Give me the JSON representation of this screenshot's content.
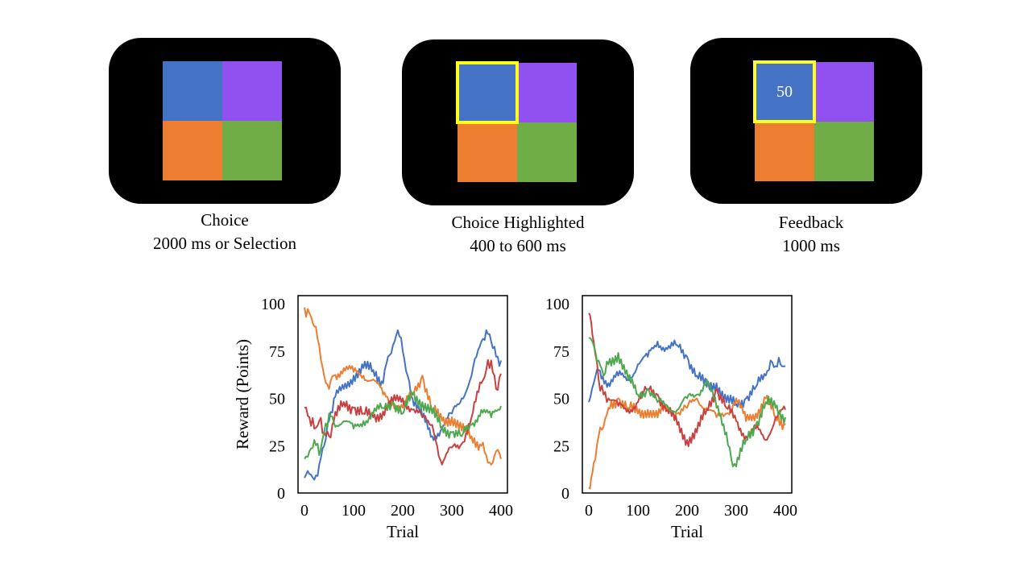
{
  "panels": [
    {
      "caption_line1": "Choice",
      "caption_line2": "2000 ms or Selection",
      "highlight": null,
      "feedback_value": null
    },
    {
      "caption_line1": "Choice Highlighted",
      "caption_line2": "400 to 600 ms",
      "highlight": "top-left",
      "feedback_value": null
    },
    {
      "caption_line1": "Feedback",
      "caption_line2": "1000 ms",
      "highlight": "top-left",
      "feedback_value": "50"
    }
  ],
  "option_colors": {
    "top_left": "#4472c4",
    "top_right": "#9150f0",
    "bottom_left": "#ed7d31",
    "bottom_right": "#70ad47"
  },
  "highlight_color": "#ffff1a",
  "chart_data": [
    {
      "type": "line",
      "xlabel": "Trial",
      "ylabel": "Reward (Points)",
      "xlim": [
        0,
        400
      ],
      "ylim": [
        0,
        100
      ],
      "xticks": [
        "0",
        "100",
        "200",
        "300",
        "400"
      ],
      "yticks": [
        "0",
        "25",
        "50",
        "75",
        "100"
      ],
      "series": [
        {
          "color": "#4472c4",
          "x": [
            0,
            10,
            20,
            30,
            40,
            50,
            60,
            80,
            100,
            120,
            140,
            160,
            170,
            180,
            190,
            200,
            210,
            220,
            240,
            260,
            280,
            300,
            320,
            340,
            350,
            360,
            370,
            380,
            390,
            400
          ],
          "values": [
            8,
            10,
            7,
            15,
            25,
            38,
            50,
            55,
            62,
            66,
            65,
            58,
            72,
            78,
            86,
            75,
            62,
            50,
            40,
            30,
            34,
            42,
            50,
            62,
            72,
            80,
            86,
            80,
            72,
            70
          ]
        },
        {
          "color": "#ed7d31",
          "x": [
            0,
            10,
            20,
            30,
            40,
            50,
            60,
            80,
            100,
            120,
            140,
            160,
            180,
            200,
            220,
            240,
            260,
            280,
            300,
            320,
            340,
            360,
            370,
            380,
            390,
            400
          ],
          "values": [
            98,
            95,
            88,
            78,
            62,
            55,
            62,
            66,
            64,
            62,
            60,
            52,
            48,
            45,
            52,
            62,
            44,
            38,
            40,
            33,
            30,
            25,
            20,
            15,
            22,
            18
          ]
        },
        {
          "color": "#c94040",
          "x": [
            0,
            10,
            20,
            30,
            40,
            50,
            60,
            80,
            100,
            120,
            140,
            160,
            180,
            200,
            220,
            240,
            260,
            270,
            280,
            300,
            320,
            340,
            360,
            370,
            380,
            390,
            400
          ],
          "values": [
            45,
            40,
            34,
            38,
            32,
            30,
            38,
            48,
            45,
            42,
            40,
            43,
            48,
            50,
            44,
            40,
            36,
            25,
            15,
            24,
            26,
            40,
            58,
            65,
            70,
            55,
            63
          ]
        },
        {
          "color": "#4ea84e",
          "x": [
            0,
            10,
            20,
            30,
            40,
            50,
            60,
            80,
            100,
            120,
            140,
            160,
            180,
            200,
            220,
            240,
            260,
            280,
            300,
            320,
            340,
            360,
            380,
            400
          ],
          "values": [
            18,
            22,
            28,
            20,
            32,
            42,
            37,
            38,
            34,
            38,
            42,
            45,
            48,
            42,
            52,
            48,
            42,
            35,
            32,
            30,
            36,
            44,
            40,
            46
          ]
        }
      ]
    },
    {
      "type": "line",
      "xlabel": "Trial",
      "ylabel": "",
      "xlim": [
        0,
        400
      ],
      "ylim": [
        0,
        100
      ],
      "xticks": [
        "0",
        "100",
        "200",
        "300",
        "400"
      ],
      "yticks": [
        "0",
        "25",
        "50",
        "75",
        "100"
      ],
      "series": [
        {
          "color": "#4472c4",
          "x": [
            0,
            10,
            20,
            40,
            60,
            80,
            100,
            120,
            140,
            160,
            180,
            200,
            220,
            240,
            260,
            280,
            300,
            320,
            340,
            360,
            370,
            380,
            390,
            400
          ],
          "values": [
            48,
            58,
            65,
            58,
            62,
            60,
            68,
            72,
            80,
            76,
            78,
            72,
            62,
            56,
            58,
            48,
            47,
            50,
            56,
            62,
            70,
            67,
            68,
            67
          ]
        },
        {
          "color": "#ed7d31",
          "x": [
            0,
            5,
            10,
            20,
            30,
            40,
            60,
            80,
            100,
            120,
            140,
            160,
            180,
            200,
            220,
            240,
            260,
            280,
            300,
            320,
            340,
            360,
            380,
            400
          ],
          "values": [
            3,
            8,
            16,
            30,
            35,
            45,
            50,
            45,
            42,
            44,
            40,
            46,
            42,
            45,
            50,
            45,
            40,
            42,
            50,
            38,
            42,
            50,
            40,
            36
          ]
        },
        {
          "color": "#c94040",
          "x": [
            0,
            5,
            10,
            20,
            30,
            40,
            60,
            80,
            100,
            120,
            140,
            160,
            180,
            200,
            220,
            240,
            260,
            280,
            300,
            320,
            340,
            360,
            380,
            400
          ],
          "values": [
            95,
            90,
            80,
            60,
            52,
            50,
            46,
            44,
            48,
            55,
            52,
            44,
            36,
            28,
            32,
            44,
            55,
            45,
            38,
            30,
            34,
            28,
            40,
            44
          ]
        },
        {
          "color": "#4ea84e",
          "x": [
            0,
            10,
            20,
            30,
            40,
            60,
            80,
            100,
            120,
            140,
            160,
            180,
            200,
            220,
            240,
            260,
            280,
            290,
            300,
            320,
            340,
            360,
            380,
            400
          ],
          "values": [
            82,
            78,
            70,
            62,
            68,
            74,
            60,
            52,
            55,
            48,
            46,
            44,
            50,
            52,
            60,
            45,
            32,
            18,
            14,
            28,
            36,
            48,
            45,
            40
          ]
        }
      ]
    }
  ]
}
